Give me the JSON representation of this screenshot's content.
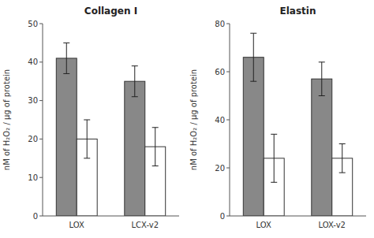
{
  "chart_data": [
    {
      "type": "bar",
      "title": "Collagen I",
      "y_label": "nM of H₂O₂ / μg of protein",
      "categories": [
        "LOX",
        "LCX-v2"
      ],
      "series": [
        {
          "color": "#888888",
          "values": [
            41,
            35
          ],
          "errors": [
            4,
            4
          ]
        },
        {
          "color": "#ffffff",
          "values": [
            20,
            18
          ],
          "errors": [
            5,
            5
          ]
        }
      ],
      "ylim": [
        0,
        50
      ],
      "yticks": [
        0,
        10,
        20,
        30,
        40,
        50
      ]
    },
    {
      "type": "bar",
      "title": "Elastin",
      "y_label": "nM of H₂O₂ / μg of protein",
      "categories": [
        "LOX",
        "LOX-v2"
      ],
      "series": [
        {
          "color": "#888888",
          "values": [
            66,
            57
          ],
          "errors": [
            10,
            7
          ]
        },
        {
          "color": "#ffffff",
          "values": [
            24,
            24
          ],
          "errors": [
            10,
            6
          ]
        }
      ],
      "ylim": [
        0,
        80
      ],
      "yticks": [
        0,
        20,
        40,
        60,
        80
      ]
    }
  ]
}
